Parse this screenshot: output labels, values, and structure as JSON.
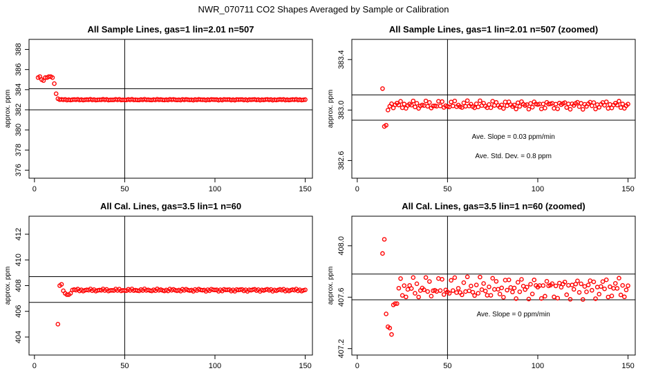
{
  "figure": {
    "title": "NWR_070711  CO2 Shapes Averaged by Sample or Calibration"
  },
  "chart_data": [
    {
      "type": "scatter",
      "title": "All Sample Lines, gas=1 lin=2.01 n=507",
      "xlabel": "",
      "ylabel": "approx. ppm",
      "xlim": [
        -3,
        154
      ],
      "ylim": [
        375.2,
        389.0
      ],
      "xticks": [
        "0",
        "50",
        "100",
        "150"
      ],
      "yticks": [
        "376",
        "378",
        "380",
        "382",
        "384",
        "386",
        "388"
      ],
      "hlines": [
        384.1,
        382.0
      ],
      "vline": 50,
      "annotations": [],
      "color": "#ff0000",
      "pattern": {
        "lead": [
          385.2,
          385.3,
          385.0,
          384.9,
          385.2,
          385.2,
          385.3,
          385.3,
          385.2,
          384.6,
          383.6,
          383.1
        ],
        "start": 2,
        "end": 150,
        "base": 383.0,
        "amp": 0.05
      }
    },
    {
      "type": "scatter",
      "title": "All Sample Lines, gas=1 lin=2.01 n=507 (zoomed)",
      "xlabel": "",
      "ylabel": "approx. ppm",
      "xlim": [
        -3,
        154
      ],
      "ylim": [
        382.46,
        383.56
      ],
      "xticks": [
        "0",
        "50",
        "100",
        "150"
      ],
      "yticks": [
        "382.6",
        "383.0",
        "383.4"
      ],
      "hlines": [
        383.12,
        382.92
      ],
      "vline": 50,
      "annotations": [
        "Ave. Slope =  0.03  ppm/min",
        "Ave. Std. Dev. =  0.8  ppm"
      ],
      "color": "#ff0000",
      "pattern": {
        "lead": [
          383.17,
          382.87,
          382.88,
          383.0,
          383.03,
          383.05
        ],
        "start": 14,
        "end": 150,
        "base": 383.04,
        "amp": 0.035
      }
    },
    {
      "type": "scatter",
      "title": "All Cal. Lines, gas=3.5 lin=1 n=60",
      "xlabel": "",
      "ylabel": "approx. ppm",
      "xlim": [
        -3,
        154
      ],
      "ylim": [
        402.6,
        413.4
      ],
      "xticks": [
        "0",
        "50",
        "100",
        "150"
      ],
      "yticks": [
        "404",
        "406",
        "408",
        "410",
        "412"
      ],
      "hlines": [
        408.7,
        406.7
      ],
      "vline": 50,
      "annotations": [],
      "color": "#ff0000",
      "pattern": {
        "lead": [
          405.0,
          408.0,
          408.1,
          407.6,
          407.4,
          407.3,
          407.3,
          407.4
        ],
        "start": 13,
        "end": 150,
        "base": 407.65,
        "amp": 0.1
      }
    },
    {
      "type": "scatter",
      "title": "All Cal. Lines, gas=3.5 lin=1 n=60 (zoomed)",
      "xlabel": "",
      "ylabel": "approx. ppm",
      "xlim": [
        -3,
        154
      ],
      "ylim": [
        407.15,
        408.23
      ],
      "xticks": [
        "0",
        "50",
        "100",
        "150"
      ],
      "yticks": [
        "407.2",
        "407.6",
        "408.0"
      ],
      "hlines": [
        407.78,
        407.58
      ],
      "vline": 50,
      "annotations": [
        "Ave. Slope =  0  ppm/min"
      ],
      "color": "#ff0000",
      "pattern": {
        "lead": [
          407.94,
          408.05,
          407.47,
          407.37,
          407.36,
          407.31,
          407.54,
          407.55,
          407.55
        ],
        "start": 14,
        "end": 150,
        "base": 407.67,
        "amp": 0.09
      }
    }
  ]
}
